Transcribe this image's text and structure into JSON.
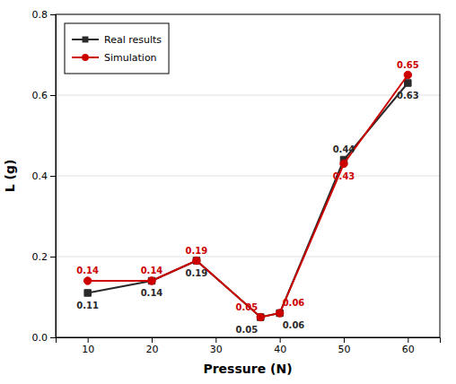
{
  "chart_data": {
    "type": "line",
    "x": [
      10,
      20,
      27,
      37,
      40,
      50,
      60
    ],
    "series": [
      {
        "name": "Real results",
        "color": "#2a2a2a",
        "marker": "square",
        "values": [
          0.11,
          0.14,
          0.19,
          0.05,
          0.06,
          0.44,
          0.63
        ]
      },
      {
        "name": "Simulation",
        "color": "#cc0000",
        "marker": "circle",
        "values": [
          0.14,
          0.14,
          0.19,
          0.05,
          0.06,
          0.43,
          0.65
        ]
      }
    ],
    "x_label": "Pressure (N)",
    "y_label": "L (g)",
    "xlim": [
      5,
      65
    ],
    "ylim": [
      0.0,
      0.8
    ],
    "xticks": [
      10,
      20,
      30,
      40,
      50,
      60
    ],
    "yticks": [
      {
        "value": 0.0,
        "label": "0.0"
      },
      0.2,
      0.4,
      0.6,
      0.8
    ],
    "grid": true,
    "legend": "upper left",
    "data_labels": true
  }
}
